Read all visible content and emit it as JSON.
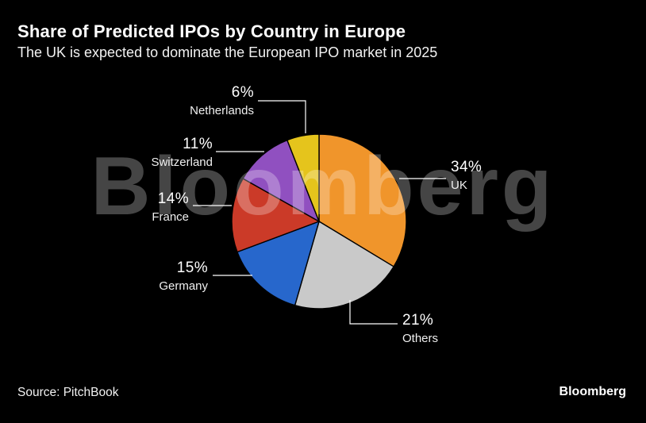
{
  "header": {
    "title": "Share of Predicted IPOs by Country in Europe",
    "subtitle": "The UK is expected to dominate the European IPO market in 2025"
  },
  "watermark": "Bloomberg",
  "footer": {
    "source": "Source: PitchBook",
    "logo": "Bloomberg"
  },
  "chart_data": {
    "type": "pie",
    "title": "Share of Predicted IPOs by Country in Europe",
    "subtitle": "The UK is expected to dominate the European IPO market in 2025",
    "source": "PitchBook",
    "unit": "%",
    "direction": "clockwise",
    "start_angle_deg": 0,
    "legend": "none",
    "slices": [
      {
        "label": "UK",
        "value": 34,
        "display": "34%",
        "color": "#f0952b"
      },
      {
        "label": "Others",
        "value": 21,
        "display": "21%",
        "color": "#c9c9c9"
      },
      {
        "label": "Germany",
        "value": 15,
        "display": "15%",
        "color": "#2767cc"
      },
      {
        "label": "France",
        "value": 14,
        "display": "14%",
        "color": "#cb3a28"
      },
      {
        "label": "Switzerland",
        "value": 11,
        "display": "11%",
        "color": "#9050c0"
      },
      {
        "label": "Netherlands",
        "value": 6,
        "display": "6%",
        "color": "#e5c41c"
      }
    ]
  }
}
